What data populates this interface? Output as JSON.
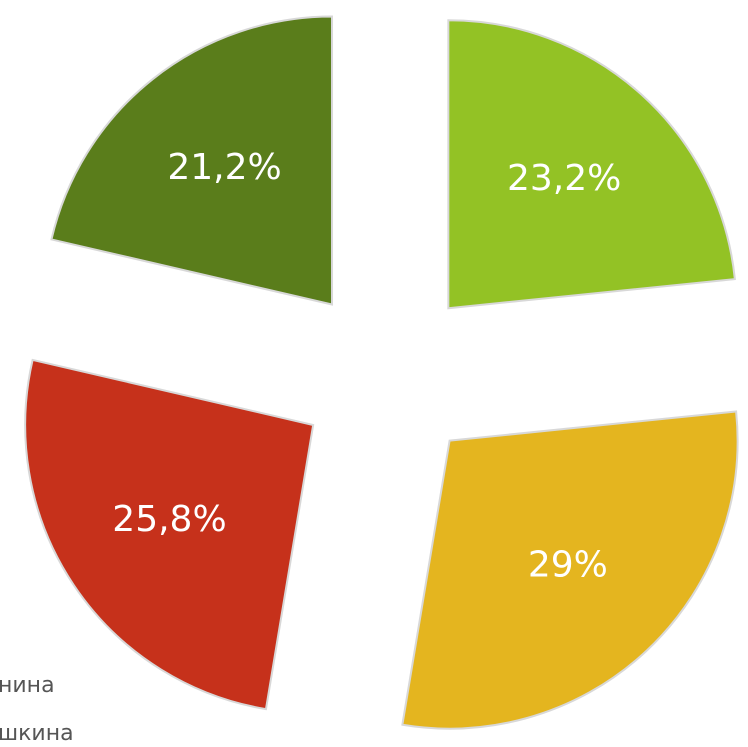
{
  "chart_data": {
    "type": "pie",
    "categories": [
      null,
      null,
      null,
      null
    ],
    "values": [
      23.2,
      29,
      25.8,
      21.2
    ],
    "value_labels": [
      "23,2%",
      "29%",
      "25,8%",
      "21,2%"
    ],
    "colors": [
      "#93c225",
      "#e4b51f",
      "#c6311b",
      "#5a7d1b"
    ],
    "exploded": true,
    "legend_fragments": [
      "нина",
      "шкина"
    ]
  }
}
